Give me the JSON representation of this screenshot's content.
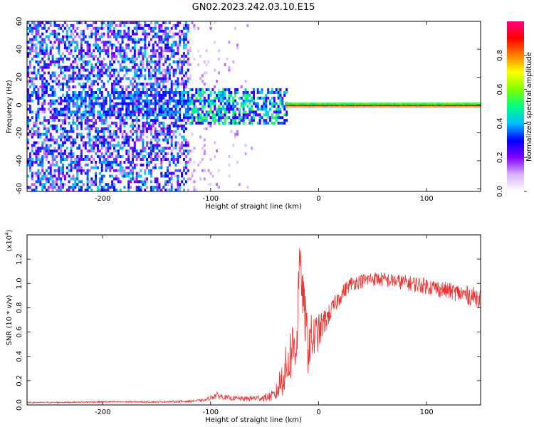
{
  "title": "GN02.2023.242.03.10.E15",
  "chart_data": [
    {
      "type": "heatmap",
      "xlabel": "Height of straight line (km)",
      "ylabel": "Frequency (Hz)",
      "xlim": [
        -270,
        150
      ],
      "ylim": [
        -62,
        60
      ],
      "x_ticks": [
        -200,
        -100,
        0,
        100
      ],
      "y_ticks": [
        -60,
        -40,
        -20,
        0,
        20,
        40,
        60
      ],
      "colorbar": {
        "label": "Normalized spectral amplitude",
        "range": [
          0,
          1
        ],
        "ticks": [
          0.0,
          0.2,
          0.4,
          0.6,
          0.8
        ],
        "colors": [
          "#ffffff",
          "#d9b3ff",
          "#8000ff",
          "#0000ff",
          "#00c0ff",
          "#00ff80",
          "#80ff00",
          "#ffff00",
          "#ff8000",
          "#ff0000",
          "#ff0080"
        ]
      },
      "features": [
        {
          "description": "broadband scattered weak energy",
          "x_range": [
            -270,
            -120
          ],
          "freq_range": [
            -62,
            60
          ],
          "level": 0.1
        },
        {
          "description": "concentrated band",
          "x_range": [
            -120,
            -30
          ],
          "freq_range": [
            -15,
            10
          ],
          "level": 0.35
        },
        {
          "description": "narrow tone near 0 Hz",
          "x_range": [
            -30,
            150
          ],
          "freq": 0,
          "level": 0.9
        }
      ]
    },
    {
      "type": "line",
      "xlabel": "Height of straight line (km)",
      "ylabel": "SNR (10 * v/v)",
      "y_multiplier": "(x10",
      "y_multiplier_exp": "4",
      "y_multiplier_close": ")",
      "xlim": [
        -270,
        150
      ],
      "ylim": [
        0,
        1.4
      ],
      "x_ticks": [
        -200,
        -100,
        0,
        100
      ],
      "y_ticks": [
        0.0,
        0.2,
        0.4,
        0.6,
        0.8,
        1.0,
        1.2
      ],
      "series": [
        {
          "color": "#ee3333",
          "x": [
            -270,
            -250,
            -200,
            -150,
            -120,
            -105,
            -95,
            -85,
            -70,
            -50,
            -40,
            -35,
            -30,
            -25,
            -20,
            -18,
            -10,
            0,
            10,
            20,
            30,
            50,
            70,
            100,
            120,
            140,
            150
          ],
          "y": [
            0.02,
            0.02,
            0.025,
            0.025,
            0.03,
            0.04,
            0.08,
            0.06,
            0.05,
            0.06,
            0.08,
            0.2,
            0.3,
            0.45,
            0.55,
            1.2,
            0.5,
            0.6,
            0.75,
            0.9,
            1.0,
            1.04,
            1.02,
            0.98,
            0.94,
            0.9,
            0.88
          ],
          "noise": [
            0.005,
            0.005,
            0.006,
            0.006,
            0.008,
            0.01,
            0.03,
            0.02,
            0.02,
            0.03,
            0.05,
            0.15,
            0.2,
            0.25,
            0.3,
            0.15,
            0.25,
            0.15,
            0.08,
            0.07,
            0.06,
            0.06,
            0.06,
            0.07,
            0.07,
            0.08,
            0.08
          ]
        }
      ]
    }
  ]
}
